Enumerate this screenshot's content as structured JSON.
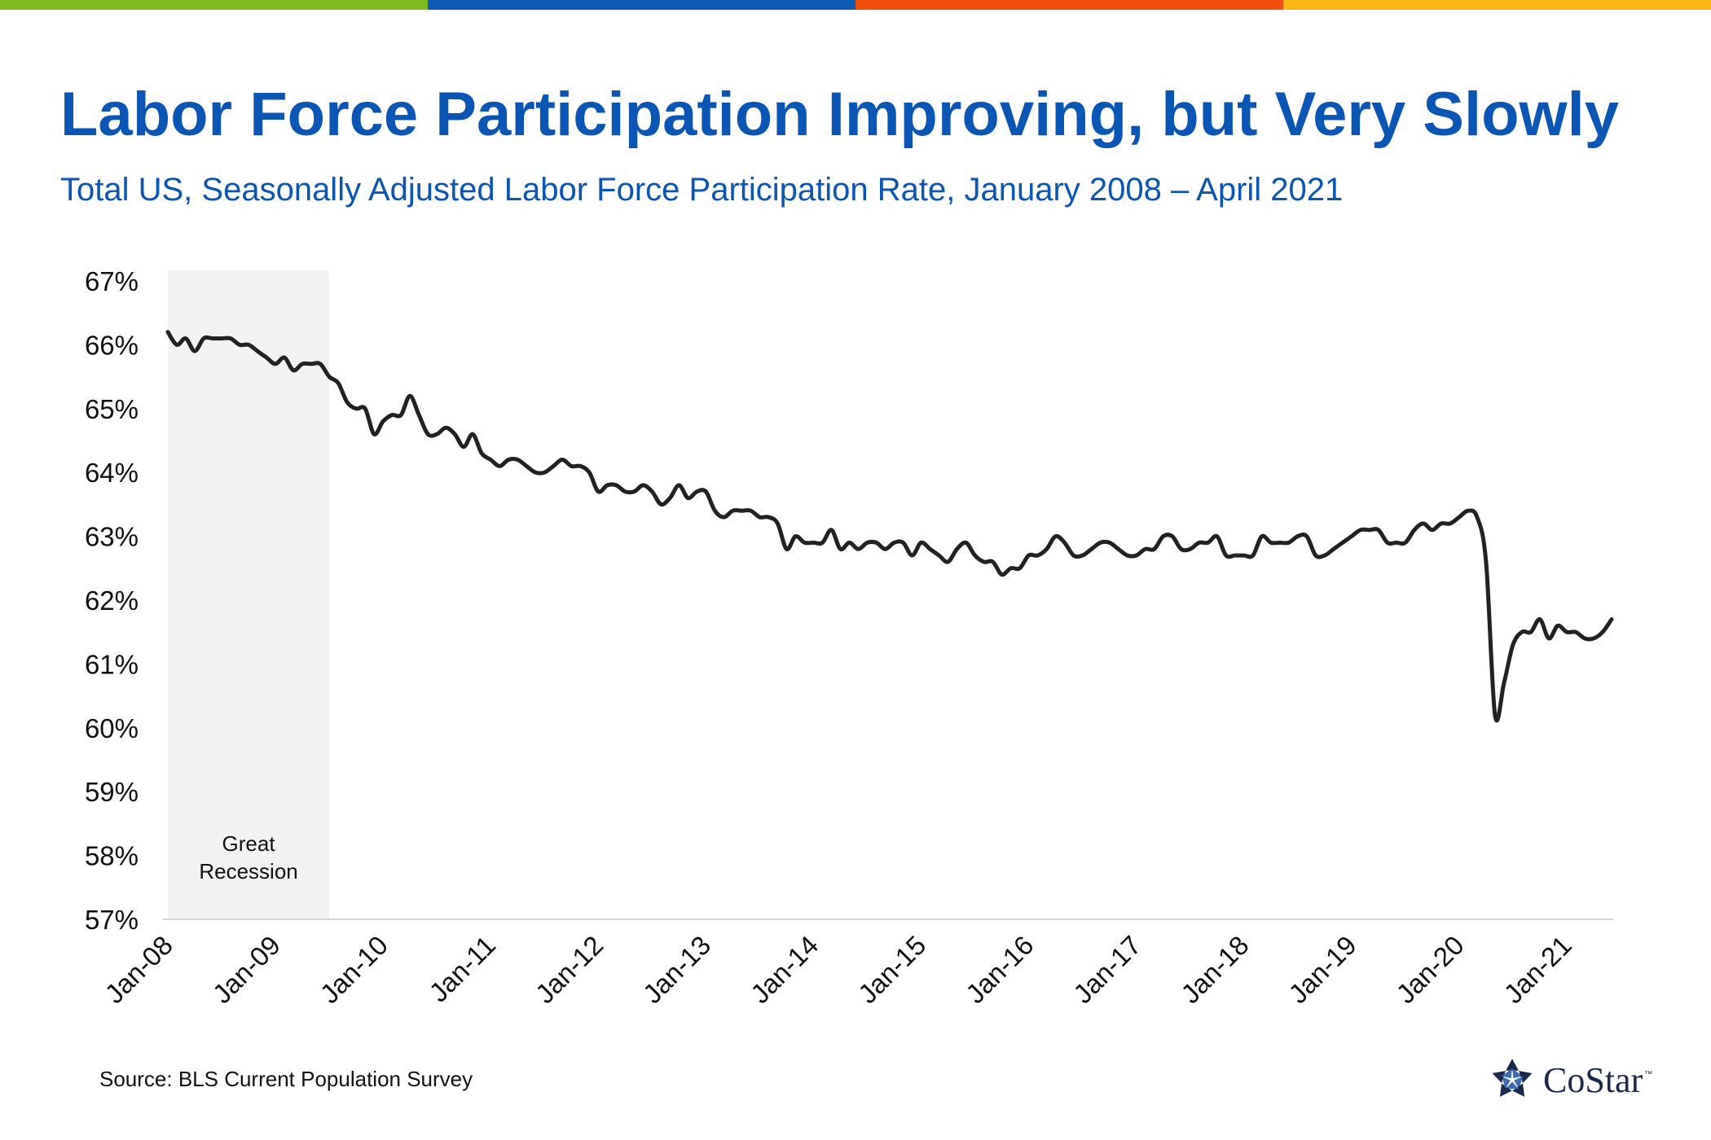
{
  "page": {
    "title": "Labor Force Participation Improving, but Very Slowly",
    "subtitle": "Total US, Seasonally Adjusted Labor Force Participation Rate, January 2008 – April 2021",
    "source": "Source: BLS Current Population Survey",
    "logo_text": "CoStar",
    "logo_tm": "™"
  },
  "colors": {
    "title": "#0b56b5",
    "subtitle": "#0b56b5",
    "line": "#222222",
    "recession_fill": "#f2f2f2",
    "axis": "#d6d6d6",
    "top_bar": [
      "#7dbb1f",
      "#0d5bb5",
      "#f04e0f",
      "#fbb616"
    ],
    "logo": "#1b2a4a"
  },
  "chart_data": {
    "type": "line",
    "title": "Labor Force Participation Improving, but Very Slowly",
    "subtitle": "Total US, Seasonally Adjusted Labor Force Participation Rate, January 2008 – April 2021",
    "xlabel": "",
    "ylabel": "",
    "x_start": "2008-01",
    "x_end": "2021-04",
    "ylim": [
      57,
      67
    ],
    "yticks": [
      57,
      58,
      59,
      60,
      61,
      62,
      63,
      64,
      65,
      66,
      67
    ],
    "ytick_labels": [
      "57%",
      "58%",
      "59%",
      "60%",
      "61%",
      "62%",
      "63%",
      "64%",
      "65%",
      "66%",
      "67%"
    ],
    "xtick_labels": [
      "Jan-08",
      "Jan-09",
      "Jan-10",
      "Jan-11",
      "Jan-12",
      "Jan-13",
      "Jan-14",
      "Jan-15",
      "Jan-16",
      "Jan-17",
      "Jan-18",
      "Jan-19",
      "Jan-20",
      "Jan-21"
    ],
    "grid": false,
    "legend": "none",
    "shaded_region": {
      "label_lines": [
        "Great",
        "Recession"
      ],
      "start": "2008-01",
      "end": "2009-07"
    },
    "series": [
      {
        "name": "Labor Force Participation Rate",
        "unit": "%",
        "values": [
          66.2,
          66.0,
          66.1,
          65.9,
          66.1,
          66.1,
          66.1,
          66.1,
          66.0,
          66.0,
          65.9,
          65.8,
          65.7,
          65.8,
          65.6,
          65.7,
          65.7,
          65.7,
          65.5,
          65.4,
          65.1,
          65.0,
          65.0,
          64.6,
          64.8,
          64.9,
          64.9,
          65.2,
          64.9,
          64.6,
          64.6,
          64.7,
          64.6,
          64.4,
          64.6,
          64.3,
          64.2,
          64.1,
          64.2,
          64.2,
          64.1,
          64.0,
          64.0,
          64.1,
          64.2,
          64.1,
          64.1,
          64.0,
          63.7,
          63.8,
          63.8,
          63.7,
          63.7,
          63.8,
          63.7,
          63.5,
          63.6,
          63.8,
          63.6,
          63.7,
          63.7,
          63.4,
          63.3,
          63.4,
          63.4,
          63.4,
          63.3,
          63.3,
          63.2,
          62.8,
          63.0,
          62.9,
          62.9,
          62.9,
          63.1,
          62.8,
          62.9,
          62.8,
          62.9,
          62.9,
          62.8,
          62.9,
          62.9,
          62.7,
          62.9,
          62.8,
          62.7,
          62.6,
          62.8,
          62.9,
          62.7,
          62.6,
          62.6,
          62.4,
          62.5,
          62.5,
          62.7,
          62.7,
          62.8,
          63.0,
          62.9,
          62.7,
          62.7,
          62.8,
          62.9,
          62.9,
          62.8,
          62.7,
          62.7,
          62.8,
          62.8,
          63.0,
          63.0,
          62.8,
          62.8,
          62.9,
          62.9,
          63.0,
          62.7,
          62.7,
          62.7,
          62.7,
          63.0,
          62.9,
          62.9,
          62.9,
          63.0,
          63.0,
          62.7,
          62.7,
          62.8,
          62.9,
          63.0,
          63.1,
          63.1,
          63.1,
          62.9,
          62.9,
          62.9,
          63.1,
          63.2,
          63.1,
          63.2,
          63.2,
          63.3,
          63.4,
          63.3,
          62.6,
          60.2,
          60.7,
          61.3,
          61.5,
          61.5,
          61.7,
          61.4,
          61.6,
          61.5,
          61.5,
          61.4,
          61.4,
          61.5,
          61.7
        ]
      }
    ]
  }
}
